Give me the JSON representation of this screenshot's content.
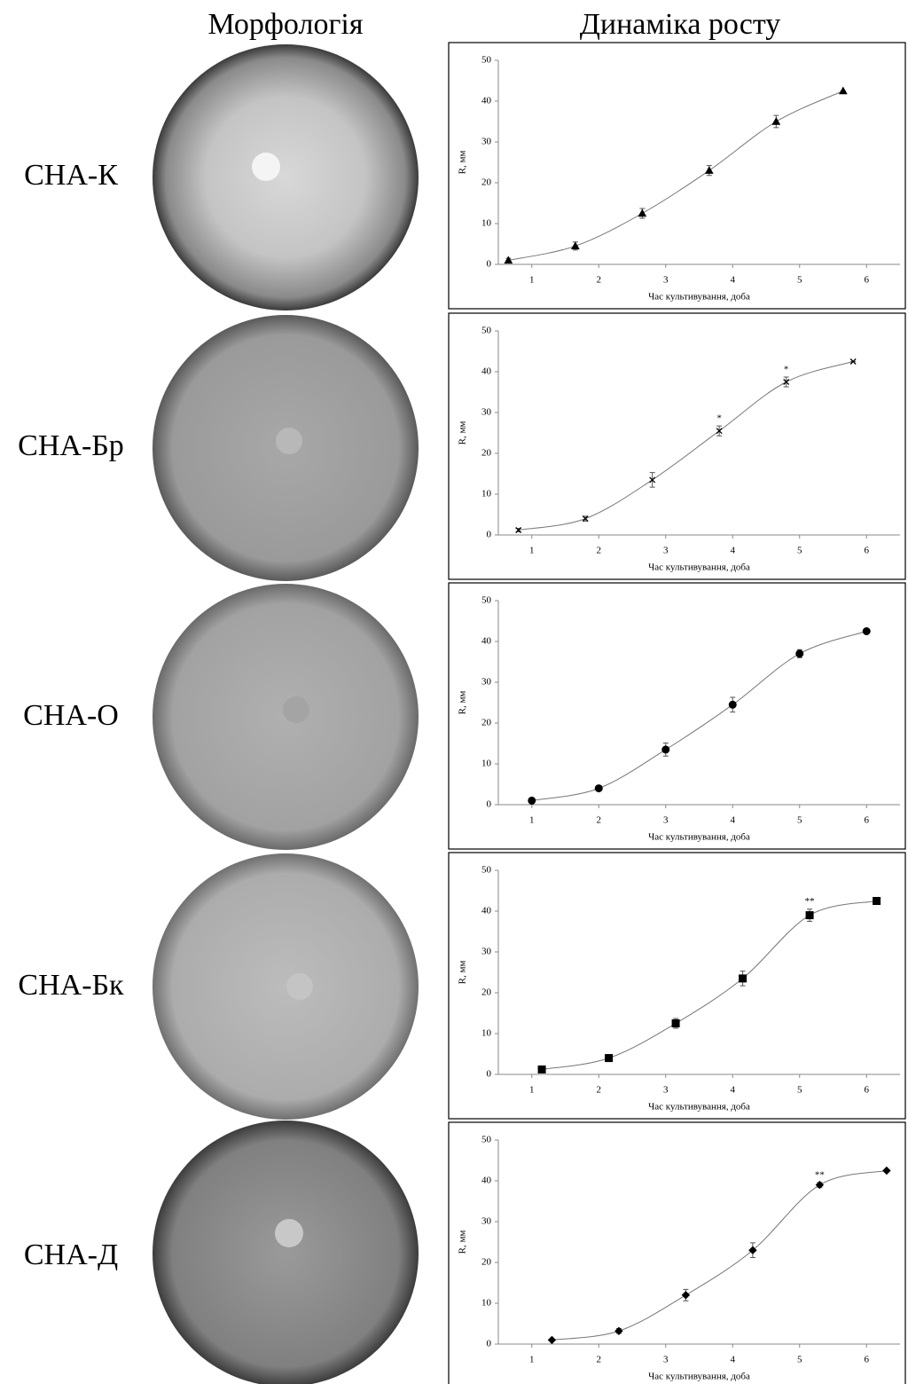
{
  "columns": [
    "Морфологія",
    "Динаміка росту"
  ],
  "row_labels": [
    "СНА-К",
    "СНА-Бр",
    "СНА-О",
    "СНА-Бк",
    "СНА-Д"
  ],
  "chart_data": [
    {
      "type": "line",
      "x_title": "Час культивування, доба",
      "y_title": "R, мм",
      "marker": "triangle",
      "color": "#000000",
      "x": [
        0.65,
        1.65,
        2.65,
        3.65,
        4.65,
        5.65
      ],
      "values": [
        1,
        4.5,
        12.5,
        23,
        35,
        42.5
      ],
      "errors": [
        0.5,
        1,
        1.2,
        1.2,
        1.5,
        0
      ],
      "point_labels": [
        null,
        null,
        null,
        null,
        null,
        null
      ],
      "xlim": [
        0.5,
        6.5
      ],
      "xticks": [
        1,
        2,
        3,
        4,
        5,
        6
      ],
      "ylim": [
        0,
        50
      ],
      "yticks": [
        0,
        10,
        20,
        30,
        40,
        50
      ]
    },
    {
      "type": "line",
      "x_title": "Час культивування, доба",
      "y_title": "R, мм",
      "marker": "cross",
      "color": "#000000",
      "x": [
        0.8,
        1.8,
        2.8,
        3.8,
        4.8,
        5.8
      ],
      "values": [
        1.2,
        4,
        13.5,
        25.5,
        37.5,
        42.5
      ],
      "errors": [
        0.4,
        0.6,
        1.8,
        1.2,
        1.2,
        0
      ],
      "point_labels": [
        null,
        null,
        null,
        "*",
        "*",
        null
      ],
      "xlim": [
        0.5,
        6.5
      ],
      "xticks": [
        1,
        2,
        3,
        4,
        5,
        6
      ],
      "ylim": [
        0,
        50
      ],
      "yticks": [
        0,
        10,
        20,
        30,
        40,
        50
      ]
    },
    {
      "type": "line",
      "x_title": "Час культивування, доба",
      "y_title": "R, мм",
      "marker": "circle",
      "color": "#000000",
      "x": [
        1,
        2,
        3,
        4,
        5,
        6
      ],
      "values": [
        1,
        4,
        13.5,
        24.5,
        37,
        42.5
      ],
      "errors": [
        0.3,
        0.5,
        1.6,
        1.8,
        1,
        0
      ],
      "point_labels": [
        null,
        null,
        null,
        null,
        null,
        null
      ],
      "xlim": [
        0.5,
        6.5
      ],
      "xticks": [
        1,
        2,
        3,
        4,
        5,
        6
      ],
      "ylim": [
        0,
        50
      ],
      "yticks": [
        0,
        10,
        20,
        30,
        40,
        50
      ]
    },
    {
      "type": "line",
      "x_title": "Час культивування, доба",
      "y_title": "R, мм",
      "marker": "square",
      "color": "#000000",
      "x": [
        1.15,
        2.15,
        3.15,
        4.15,
        5.15,
        6.15
      ],
      "values": [
        1.2,
        4,
        12.5,
        23.5,
        39,
        42.5
      ],
      "errors": [
        0.3,
        0.4,
        1.2,
        1.8,
        1.5,
        0
      ],
      "point_labels": [
        null,
        null,
        null,
        null,
        "**",
        null
      ],
      "xlim": [
        0.5,
        6.5
      ],
      "xticks": [
        1,
        2,
        3,
        4,
        5,
        6
      ],
      "ylim": [
        0,
        50
      ],
      "yticks": [
        0,
        10,
        20,
        30,
        40,
        50
      ]
    },
    {
      "type": "line",
      "x_title": "Час культивування, доба",
      "y_title": "R, мм",
      "marker": "diamond",
      "color": "#000000",
      "x": [
        1.3,
        2.3,
        3.3,
        4.3,
        5.3,
        6.3
      ],
      "values": [
        1,
        3.2,
        12,
        23,
        39,
        42.5
      ],
      "errors": [
        0.2,
        0.6,
        1.4,
        1.8,
        0.6,
        0
      ],
      "point_labels": [
        null,
        null,
        null,
        null,
        "**",
        null
      ],
      "xlim": [
        0.5,
        6.5
      ],
      "xticks": [
        1,
        2,
        3,
        4,
        5,
        6
      ],
      "ylim": [
        0,
        50
      ],
      "yticks": [
        0,
        10,
        20,
        30,
        40,
        50
      ]
    }
  ]
}
